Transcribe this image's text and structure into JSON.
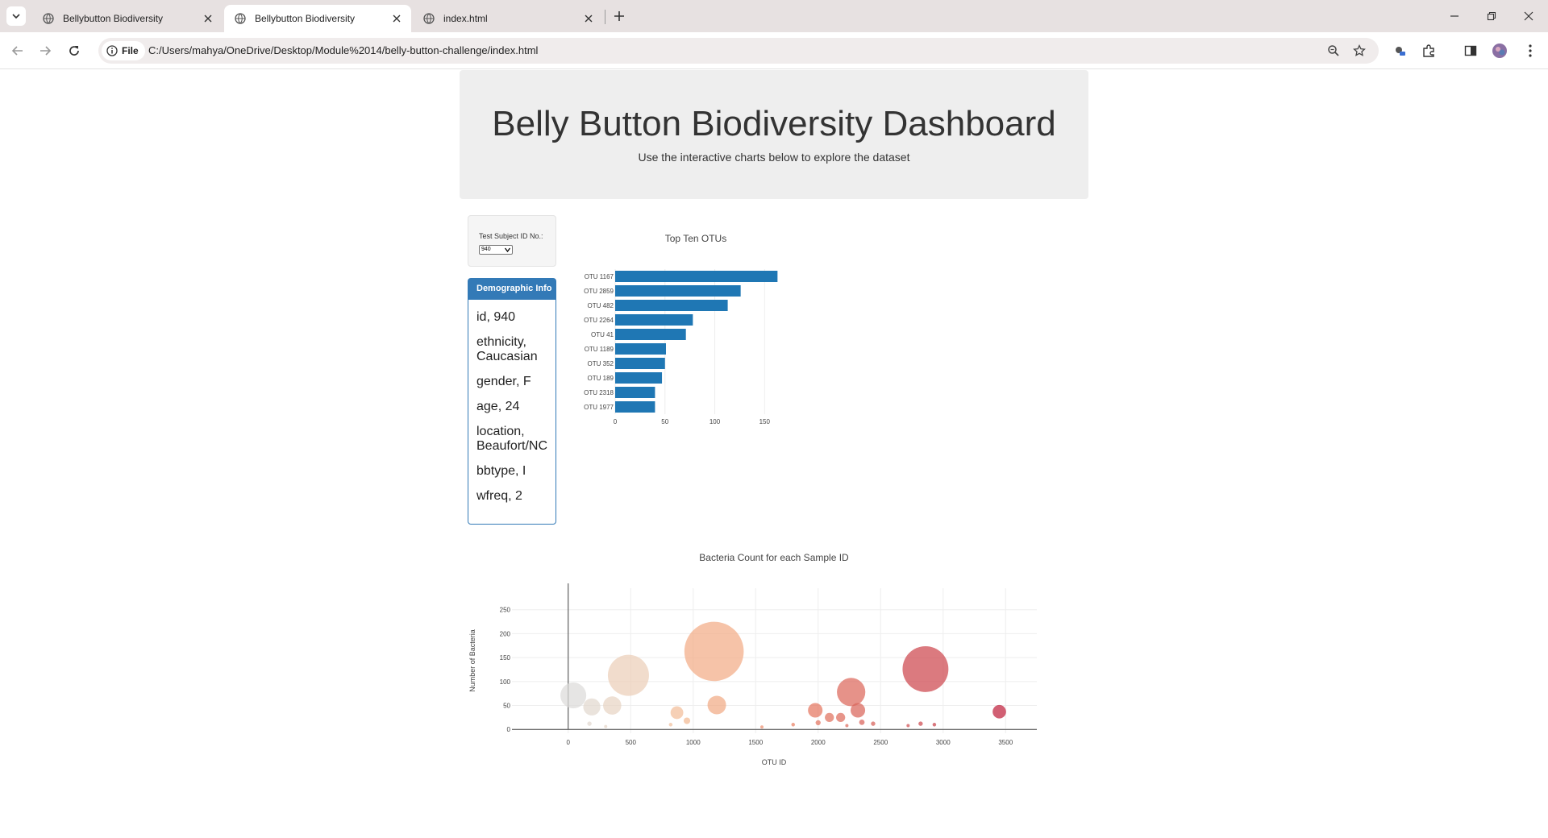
{
  "browser": {
    "tabs": [
      {
        "title": "Bellybutton Biodiversity",
        "active": false
      },
      {
        "title": "Bellybutton Biodiversity",
        "active": true
      },
      {
        "title": "index.html",
        "active": false
      }
    ],
    "security_chip": "File",
    "url": "C:/Users/mahya/OneDrive/Desktop/Module%2014/belly-button-challenge/index.html"
  },
  "header": {
    "title": "Belly Button Biodiversity Dashboard",
    "subtitle": "Use the interactive charts below to explore the dataset"
  },
  "selector": {
    "label": "Test Subject ID No.:",
    "value": "940"
  },
  "demographic": {
    "heading": "Demographic Info",
    "lines": [
      [
        "id, 940"
      ],
      [
        "ethnicity,",
        "Caucasian"
      ],
      [
        "gender, F"
      ],
      [
        "age, 24"
      ],
      [
        "location,",
        "Beaufort/NC"
      ],
      [
        "bbtype, I"
      ],
      [
        "wfreq, 2"
      ]
    ]
  },
  "colors": {
    "bar": "#1f77b4",
    "panel_primary": "#337ab7"
  },
  "chart_data": [
    {
      "type": "bar",
      "orientation": "horizontal",
      "title": "Top Ten OTUs",
      "categories": [
        "OTU 1167",
        "OTU 2859",
        "OTU 482",
        "OTU 2264",
        "OTU 41",
        "OTU 1189",
        "OTU 352",
        "OTU 189",
        "OTU 2318",
        "OTU 1977"
      ],
      "values": [
        163,
        126,
        113,
        78,
        71,
        51,
        50,
        47,
        40,
        40
      ],
      "xticks": [
        0,
        50,
        100,
        150
      ],
      "xlim": [
        0,
        170
      ],
      "color": "#1f77b4"
    },
    {
      "type": "scatter",
      "variant": "bubble",
      "title": "Bacteria Count for each Sample ID",
      "xlabel": "OTU ID",
      "ylabel": "Number of Bacteria",
      "xticks": [
        0,
        500,
        1000,
        1500,
        2000,
        2500,
        3000,
        3500
      ],
      "yticks": [
        0,
        50,
        100,
        150,
        200,
        250
      ],
      "xlim": [
        -450,
        3750
      ],
      "ylim": [
        -8,
        295
      ],
      "grid": true,
      "colorscale": "Earth",
      "points": [
        {
          "x": 41,
          "y": 71
        },
        {
          "x": 189,
          "y": 47
        },
        {
          "x": 352,
          "y": 50
        },
        {
          "x": 482,
          "y": 113
        },
        {
          "x": 1167,
          "y": 163
        },
        {
          "x": 1189,
          "y": 51
        },
        {
          "x": 1977,
          "y": 40
        },
        {
          "x": 2264,
          "y": 78
        },
        {
          "x": 2318,
          "y": 40
        },
        {
          "x": 2859,
          "y": 126
        },
        {
          "x": 3450,
          "y": 37
        },
        {
          "x": 870,
          "y": 35
        },
        {
          "x": 950,
          "y": 18
        },
        {
          "x": 2090,
          "y": 25
        },
        {
          "x": 2180,
          "y": 25
        },
        {
          "x": 2350,
          "y": 15
        },
        {
          "x": 1800,
          "y": 10
        },
        {
          "x": 2440,
          "y": 12
        },
        {
          "x": 2820,
          "y": 12
        },
        {
          "x": 2930,
          "y": 10
        },
        {
          "x": 2720,
          "y": 8
        },
        {
          "x": 170,
          "y": 12
        },
        {
          "x": 300,
          "y": 6
        },
        {
          "x": 820,
          "y": 10
        },
        {
          "x": 2230,
          "y": 8
        },
        {
          "x": 2000,
          "y": 14
        },
        {
          "x": 1550,
          "y": 5
        }
      ]
    }
  ]
}
